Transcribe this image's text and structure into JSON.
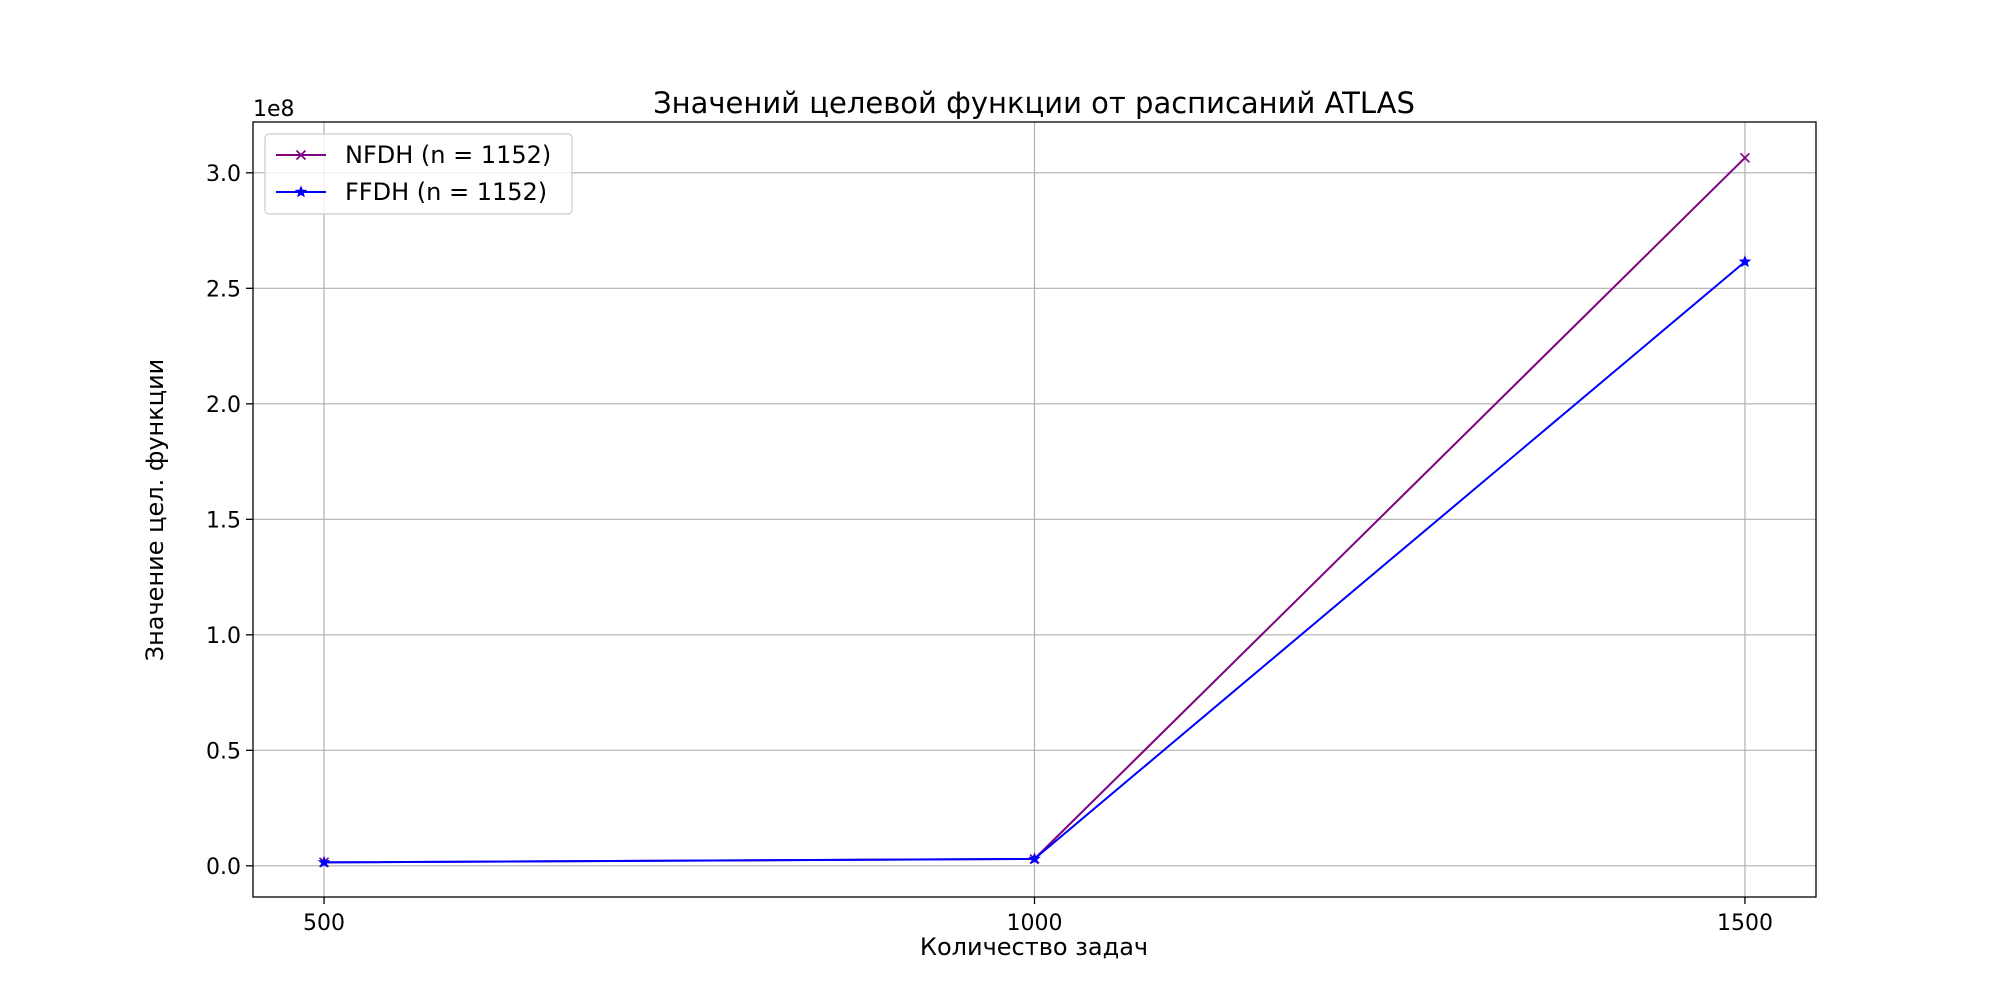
{
  "chart_data": {
    "type": "line",
    "title": "Значений целевой функции от расписаний ATLAS",
    "xlabel": "Количество задач",
    "ylabel": "Значение цел. функции",
    "y_offset_label": "1e8",
    "x": [
      500,
      1000,
      1500
    ],
    "x_ticks": [
      500,
      1000,
      1500
    ],
    "x_tick_labels": [
      "500",
      "1000",
      "1500"
    ],
    "xlim": [
      450,
      1550
    ],
    "y_ticks": [
      0,
      0.5,
      1.0,
      1.5,
      2.0,
      2.5,
      3.0
    ],
    "y_tick_labels": [
      "0.0",
      "0.5",
      "1.0",
      "1.5",
      "2.0",
      "2.5",
      "3.0"
    ],
    "ylim": [
      -0.135,
      3.22
    ],
    "y_unit_multiplier": 100000000,
    "grid": true,
    "legend_position": "top-left",
    "series": [
      {
        "name": "NFDH (n = 1152)",
        "values": [
          0.015,
          0.03,
          3.065
        ],
        "color": "#800080",
        "marker": "x"
      },
      {
        "name": "FFDH (n = 1152)",
        "values": [
          0.015,
          0.03,
          2.615
        ],
        "color": "#0000ff",
        "marker": "star"
      }
    ]
  }
}
